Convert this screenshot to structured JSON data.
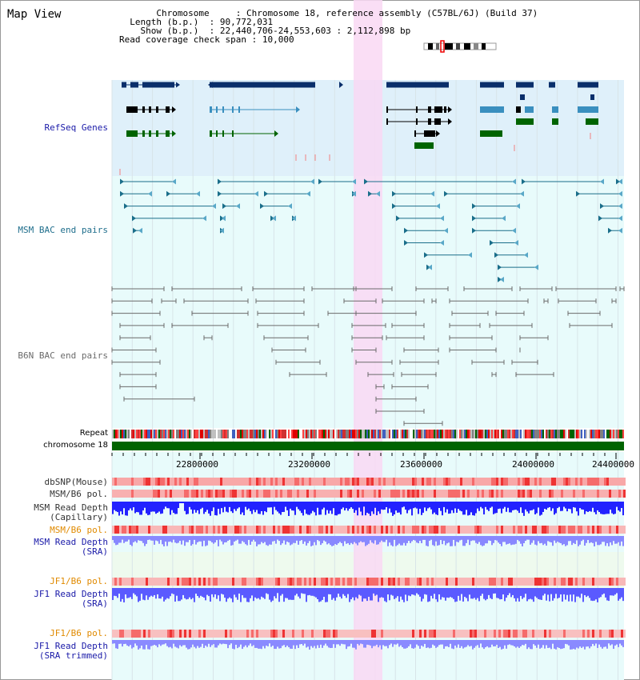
{
  "title": "Map View",
  "header": {
    "lines": [
      {
        "key": "Chromosome",
        "value": "Chromosome 18, reference assembly (C57BL/6J) (Build 37)"
      },
      {
        "key": "Length (b.p.)",
        "value": "90,772,031"
      },
      {
        "key": "Show (b.p.)",
        "value": "22,440,706-24,553,603 : 2,112,898 bp"
      },
      {
        "key": "Read coverage check span",
        "value": "10,000"
      }
    ]
  },
  "tracks": {
    "refseq": "RefSeq Genes",
    "msm_bac": "MSM BAC end pairs",
    "b6n_bac": "B6N BAC end pairs",
    "repeat": "Repeat",
    "chromosome": "chromosome 18",
    "dbsnp": "dbSNP(Mouse)",
    "msm_b6_pol": "MSM/B6 pol.",
    "msm_read_cap_1": "MSM Read Depth",
    "msm_read_cap_2": "(Capillary)",
    "msm_b6_pol_2": "MSM/B6 pol.",
    "msm_read_sra_1": "MSM Read Depth",
    "msm_read_sra_2": "(SRA)",
    "jf1_b6_pol": "JF1/B6 pol.",
    "jf1_read_sra_1": "JF1 Read Depth",
    "jf1_read_sra_2": "(SRA)",
    "jf1_b6_pol_2": "JF1/B6 pol.",
    "jf1_read_trim_1": "JF1 Read Depth",
    "jf1_read_trim_2": "(SRA trimmed)"
  },
  "axis": {
    "ticks": [
      "22800000",
      "23200000",
      "23600000",
      "24000000",
      "24400000"
    ]
  },
  "colors": {
    "refseq_bg": "#dff0fa",
    "msm_bg": "#e8fbfb",
    "highlight": "#f9d8f3",
    "gene_dark": "#0a2f6b",
    "gene_mid": "#3a8fbf",
    "gene_green": "#006400",
    "msm_line": "#1a6e8a",
    "b6n_line": "#6b6b6b",
    "chrom_green": "#006400",
    "track_label_blue": "#1a1aa8",
    "track_label_orange": "#e08a00",
    "track_label_teal": "#1f6e8c"
  }
}
